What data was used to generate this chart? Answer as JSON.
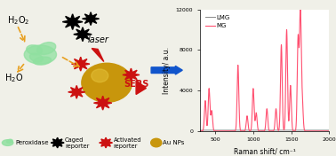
{
  "fig_width": 3.78,
  "fig_height": 1.76,
  "dpi": 100,
  "bg_color": "#f0f0e8",
  "mg_color": "#ff5070",
  "lmg_color": "#888888",
  "xlabel": "Raman shift/ cm⁻¹",
  "ylabel": "Intensity/ a.u.",
  "xlim": [
    300,
    2000
  ],
  "ylim": [
    0,
    12000
  ],
  "yticks": [
    0,
    4000,
    8000,
    12000
  ],
  "xticks": [
    500,
    1000,
    1500,
    2000
  ],
  "axis_fontsize": 5.5,
  "tick_fontsize": 4.5,
  "legend_fontsize": 5,
  "mg_peaks_x": [
    370,
    420,
    455,
    800,
    920,
    1000,
    1040,
    1180,
    1300,
    1370,
    1440,
    1490,
    1590,
    1620,
    1645
  ],
  "mg_peaks_y": [
    3000,
    4200,
    2000,
    6500,
    1500,
    4200,
    1800,
    2200,
    2200,
    8500,
    10000,
    4500,
    9200,
    12000,
    3000
  ],
  "lmg_flat_y": 80
}
